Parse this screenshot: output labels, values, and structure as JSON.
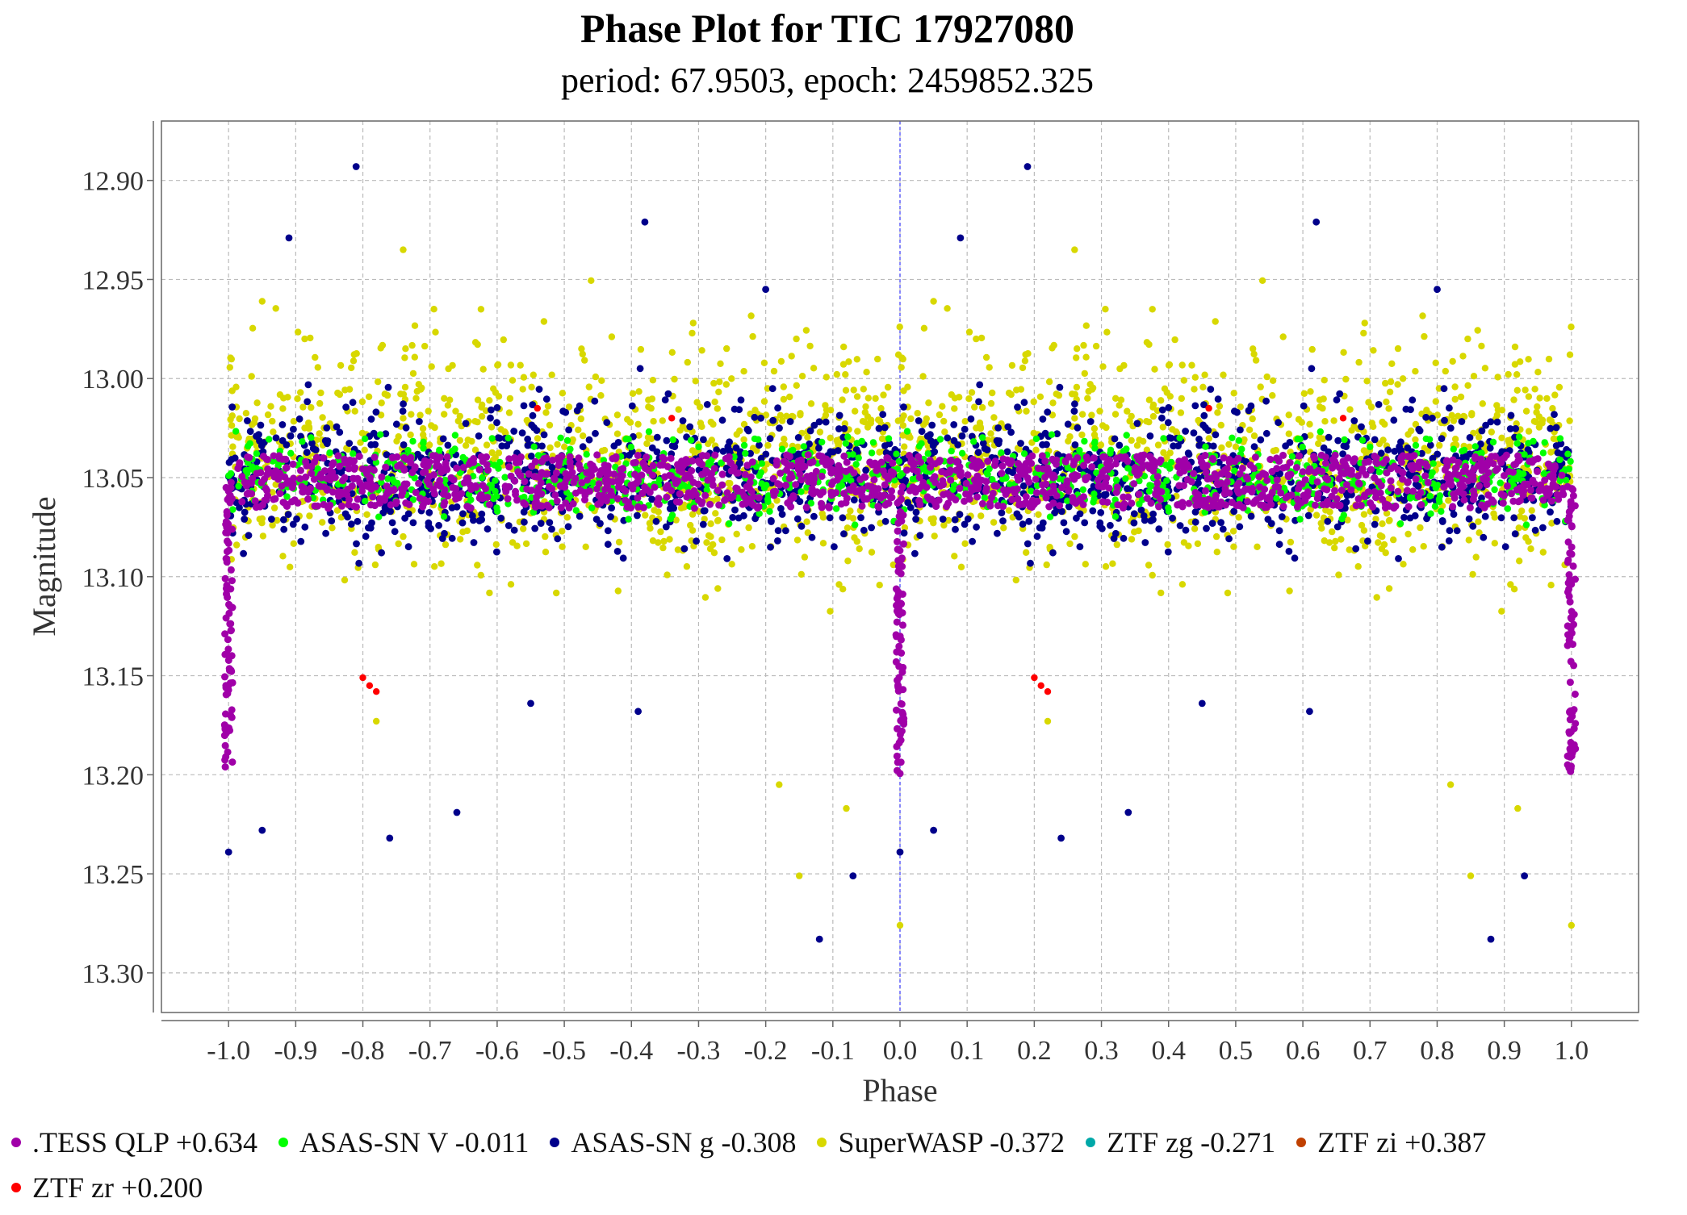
{
  "title": "Phase Plot for TIC 17927080",
  "subtitle": "period: 67.9503, epoch: 2459852.325",
  "chart_data": {
    "type": "scatter",
    "title": "Phase Plot for TIC 17927080",
    "subtitle": "period: 67.9503, epoch: 2459852.325",
    "xlabel": "Phase",
    "ylabel": "Magnitude",
    "xlim": [
      -1.1,
      1.1
    ],
    "ylim": [
      13.32,
      12.87
    ],
    "y_inverted": true,
    "grid": true,
    "x_ticks": [
      "-1.0",
      "-0.9",
      "-0.8",
      "-0.7",
      "-0.6",
      "-0.5",
      "-0.4",
      "-0.3",
      "-0.2",
      "-0.1",
      "0.0",
      "0.1",
      "0.2",
      "0.3",
      "0.4",
      "0.5",
      "0.6",
      "0.7",
      "0.8",
      "0.9",
      "1.0"
    ],
    "y_ticks": [
      "12.90",
      "12.95",
      "13.00",
      "13.05",
      "13.10",
      "13.15",
      "13.20",
      "13.25",
      "13.30"
    ],
    "reference_line_x": 0.0,
    "legend_position": "bottom",
    "series": [
      {
        "name": ".TESS QLP +0.634",
        "color": "#a000a8",
        "center": 13.052,
        "spread": 0.018,
        "dip_depth": 13.2
      },
      {
        "name": "ASAS-SN V -0.011",
        "color": "#00ff00",
        "center": 13.05,
        "spread": 0.028,
        "outliers": []
      },
      {
        "name": "ASAS-SN g -0.308",
        "color": "#00008b",
        "center": 13.05,
        "spread": 0.045,
        "outliers": [
          [
            -0.81,
            12.893
          ],
          [
            -0.91,
            12.929
          ],
          [
            -0.38,
            12.921
          ],
          [
            -0.12,
            13.283
          ],
          [
            -0.07,
            13.251
          ],
          [
            -0.95,
            13.228
          ],
          [
            -0.76,
            13.232
          ],
          [
            -0.66,
            13.219
          ],
          [
            -1.0,
            13.239
          ],
          [
            -0.2,
            12.955
          ],
          [
            -0.55,
            13.164
          ],
          [
            -0.39,
            13.168
          ]
        ]
      },
      {
        "name": "SuperWASP -0.372",
        "color": "#d8d800",
        "center": 13.04,
        "spread": 0.055,
        "outliers": [
          [
            -0.15,
            13.251
          ],
          [
            -0.18,
            13.205
          ],
          [
            0.0,
            13.276
          ],
          [
            -0.08,
            13.217
          ],
          [
            -0.78,
            13.173
          ],
          [
            -0.95,
            12.961
          ],
          [
            -0.74,
            12.935
          ]
        ]
      },
      {
        "name": "ZTF zg -0.271",
        "color": "#00a8a8",
        "points": []
      },
      {
        "name": "ZTF zi +0.387",
        "color": "#c04000",
        "points": []
      },
      {
        "name": "ZTF zr +0.200",
        "color": "#ff0000",
        "points": [
          [
            -0.8,
            13.151
          ],
          [
            -0.79,
            13.155
          ],
          [
            -0.78,
            13.158
          ],
          [
            -0.34,
            13.02
          ],
          [
            -0.54,
            13.015
          ]
        ]
      }
    ]
  },
  "legend": {
    "row1": [
      {
        "label": ".TESS QLP +0.634",
        "color": "#a000a8"
      },
      {
        "label": "ASAS-SN V -0.011",
        "color": "#00ff00"
      },
      {
        "label": "ASAS-SN g -0.308",
        "color": "#00008b"
      },
      {
        "label": "SuperWASP -0.372",
        "color": "#d8d800"
      },
      {
        "label": "ZTF zg -0.271",
        "color": "#00a8a8"
      },
      {
        "label": "ZTF zi +0.387",
        "color": "#c04000"
      }
    ],
    "row2": [
      {
        "label": "ZTF zr +0.200",
        "color": "#ff0000"
      }
    ]
  }
}
